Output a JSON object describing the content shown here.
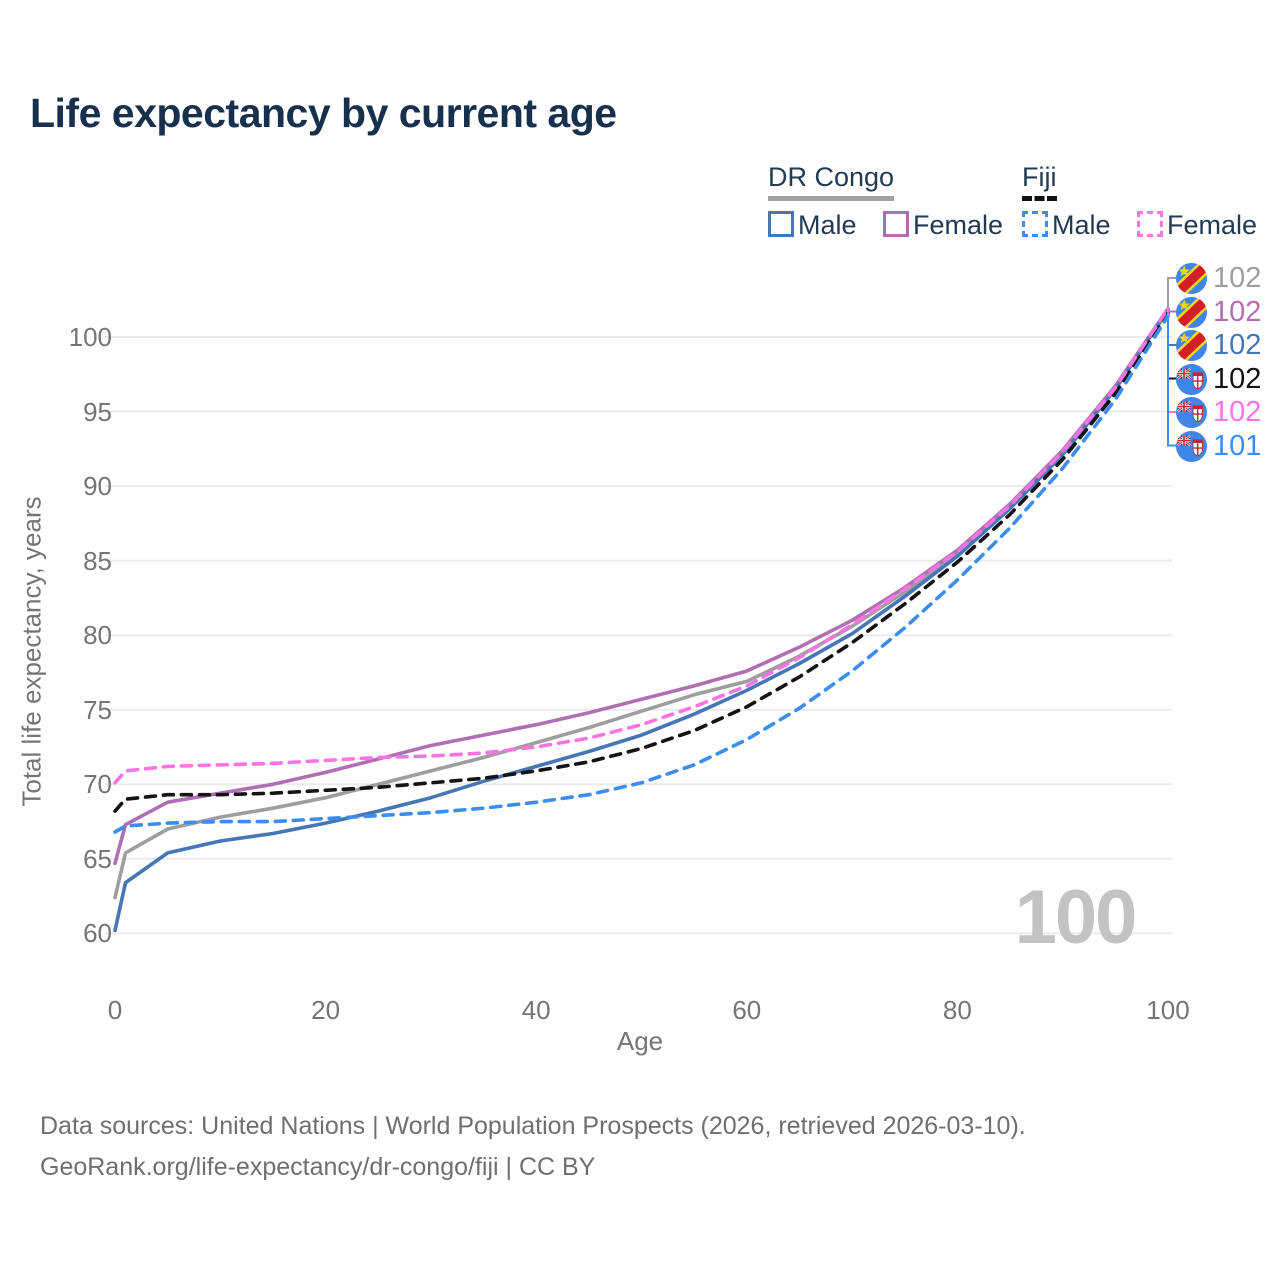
{
  "title": "Life expectancy by current age",
  "legend": {
    "groups": [
      {
        "name": "DR Congo",
        "line_color": "#a3a3a3",
        "line_style": "solid",
        "items": [
          {
            "label": "Male",
            "color": "#4577b6",
            "dashed": false
          },
          {
            "label": "Female",
            "color": "#b06fb3",
            "dashed": false
          }
        ]
      },
      {
        "name": "Fiji",
        "line_color": "#111111",
        "line_style": "dashed",
        "items": [
          {
            "label": "Male",
            "color": "#3b8df2",
            "dashed": true
          },
          {
            "label": "Female",
            "color": "#fc74e4",
            "dashed": true
          }
        ]
      }
    ]
  },
  "y_axis": {
    "title": "Total life expectancy, years",
    "ticks": [
      60,
      65,
      70,
      75,
      80,
      85,
      90,
      95,
      100
    ]
  },
  "x_axis": {
    "title": "Age",
    "ticks": [
      0,
      20,
      40,
      60,
      80,
      100
    ]
  },
  "watermark": "100",
  "end_labels": [
    {
      "country": "dr-congo",
      "value": "102",
      "color": "#9e9e9e"
    },
    {
      "country": "dr-congo",
      "value": "102",
      "color": "#b06fb3"
    },
    {
      "country": "dr-congo",
      "value": "102",
      "color": "#4577b6"
    },
    {
      "country": "fiji",
      "value": "102",
      "color": "#141414"
    },
    {
      "country": "fiji",
      "value": "102",
      "color": "#fc74e4"
    },
    {
      "country": "fiji",
      "value": "101",
      "color": "#3b8df2"
    }
  ],
  "footer": {
    "line1": "Data sources: United Nations | World Population Prospects (2026, retrieved 2026-03-10).",
    "line2": "GeoRank.org/life-expectancy/dr-congo/fiji | CC BY"
  },
  "chart_data": {
    "type": "line",
    "title": "Life expectancy by current age",
    "xlabel": "Age",
    "ylabel": "Total life expectancy, years",
    "xlim": [
      0,
      100
    ],
    "ylim": [
      60,
      102
    ],
    "grid": "horizontal",
    "legend_position": "top-right",
    "x": [
      0,
      1,
      5,
      10,
      15,
      20,
      25,
      30,
      35,
      40,
      45,
      50,
      55,
      60,
      65,
      70,
      75,
      80,
      85,
      90,
      95,
      100
    ],
    "series": [
      {
        "name": "DR Congo Both sexes",
        "color": "#9e9e9e",
        "dashed": false,
        "values": [
          62.4,
          65.4,
          67.0,
          67.8,
          68.4,
          69.1,
          70.0,
          70.9,
          71.8,
          72.8,
          73.8,
          74.9,
          76.0,
          76.9,
          78.6,
          80.6,
          82.9,
          85.5,
          88.6,
          92.2,
          96.6,
          101.9
        ]
      },
      {
        "name": "DR Congo Female",
        "color": "#b06fb3",
        "dashed": false,
        "values": [
          64.7,
          67.3,
          68.8,
          69.4,
          70.0,
          70.8,
          71.7,
          72.6,
          73.3,
          74.0,
          74.8,
          75.7,
          76.6,
          77.6,
          79.2,
          81.0,
          83.2,
          85.7,
          88.8,
          92.4,
          96.7,
          101.9
        ]
      },
      {
        "name": "DR Congo Male",
        "color": "#4577b6",
        "dashed": false,
        "values": [
          60.2,
          63.4,
          65.4,
          66.2,
          66.7,
          67.4,
          68.2,
          69.1,
          70.2,
          71.2,
          72.2,
          73.3,
          74.7,
          76.3,
          78.1,
          80.1,
          82.6,
          85.3,
          88.5,
          92.1,
          96.5,
          101.8
        ]
      },
      {
        "name": "Fiji Both sexes",
        "color": "#141414",
        "dashed": true,
        "values": [
          68.2,
          69.0,
          69.3,
          69.3,
          69.4,
          69.6,
          69.8,
          70.1,
          70.4,
          70.9,
          71.5,
          72.4,
          73.6,
          75.2,
          77.2,
          79.5,
          82.1,
          84.9,
          88.1,
          91.8,
          96.2,
          101.6
        ]
      },
      {
        "name": "Fiji Female",
        "color": "#fc74e4",
        "dashed": true,
        "values": [
          70.1,
          70.9,
          71.2,
          71.3,
          71.4,
          71.6,
          71.8,
          71.9,
          72.1,
          72.5,
          73.1,
          74.0,
          75.2,
          76.6,
          78.5,
          80.7,
          83.1,
          85.6,
          88.7,
          92.3,
          96.6,
          101.9
        ]
      },
      {
        "name": "Fiji Male",
        "color": "#3b8df2",
        "dashed": true,
        "values": [
          66.8,
          67.2,
          67.4,
          67.5,
          67.5,
          67.7,
          67.9,
          68.1,
          68.4,
          68.8,
          69.3,
          70.1,
          71.3,
          73.0,
          75.1,
          77.6,
          80.5,
          83.7,
          87.2,
          91.2,
          95.8,
          101.4
        ]
      }
    ]
  }
}
